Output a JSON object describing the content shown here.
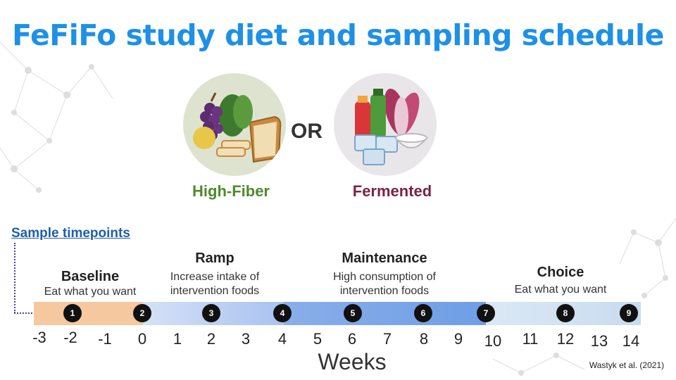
{
  "title": "FeFiFo study diet and sampling schedule",
  "or_text": "OR",
  "options": {
    "fiber": "High-Fiber",
    "fermented": "Fermented"
  },
  "sample_link": "Sample timepoints",
  "phases": {
    "baseline": {
      "title": "Baseline",
      "desc": "Eat what you want"
    },
    "ramp": {
      "title": "Ramp",
      "desc1": "Increase intake of",
      "desc2": "intervention foods"
    },
    "maintenance": {
      "title": "Maintenance",
      "desc1": "High consumption of",
      "desc2": "intervention foods"
    },
    "choice": {
      "title": "Choice",
      "desc": "Eat what you want"
    }
  },
  "ticks": [
    "-3",
    "-2",
    "-1",
    "0",
    "1",
    "2",
    "3",
    "4",
    "5",
    "6",
    "7",
    "8",
    "9",
    "10",
    "11",
    "12",
    "13",
    "14"
  ],
  "markers": [
    "1",
    "2",
    "3",
    "4",
    "5",
    "6",
    "7",
    "8",
    "9"
  ],
  "axis_label": "Weeks",
  "citation": "Wastyk et al. (2021)",
  "colors": {
    "title": "#1e90e6",
    "baseline": "#f6c8a0",
    "ramp": "#cad8f5",
    "maintenance": "#6e9ee6",
    "choice": "#cfe0f0"
  }
}
